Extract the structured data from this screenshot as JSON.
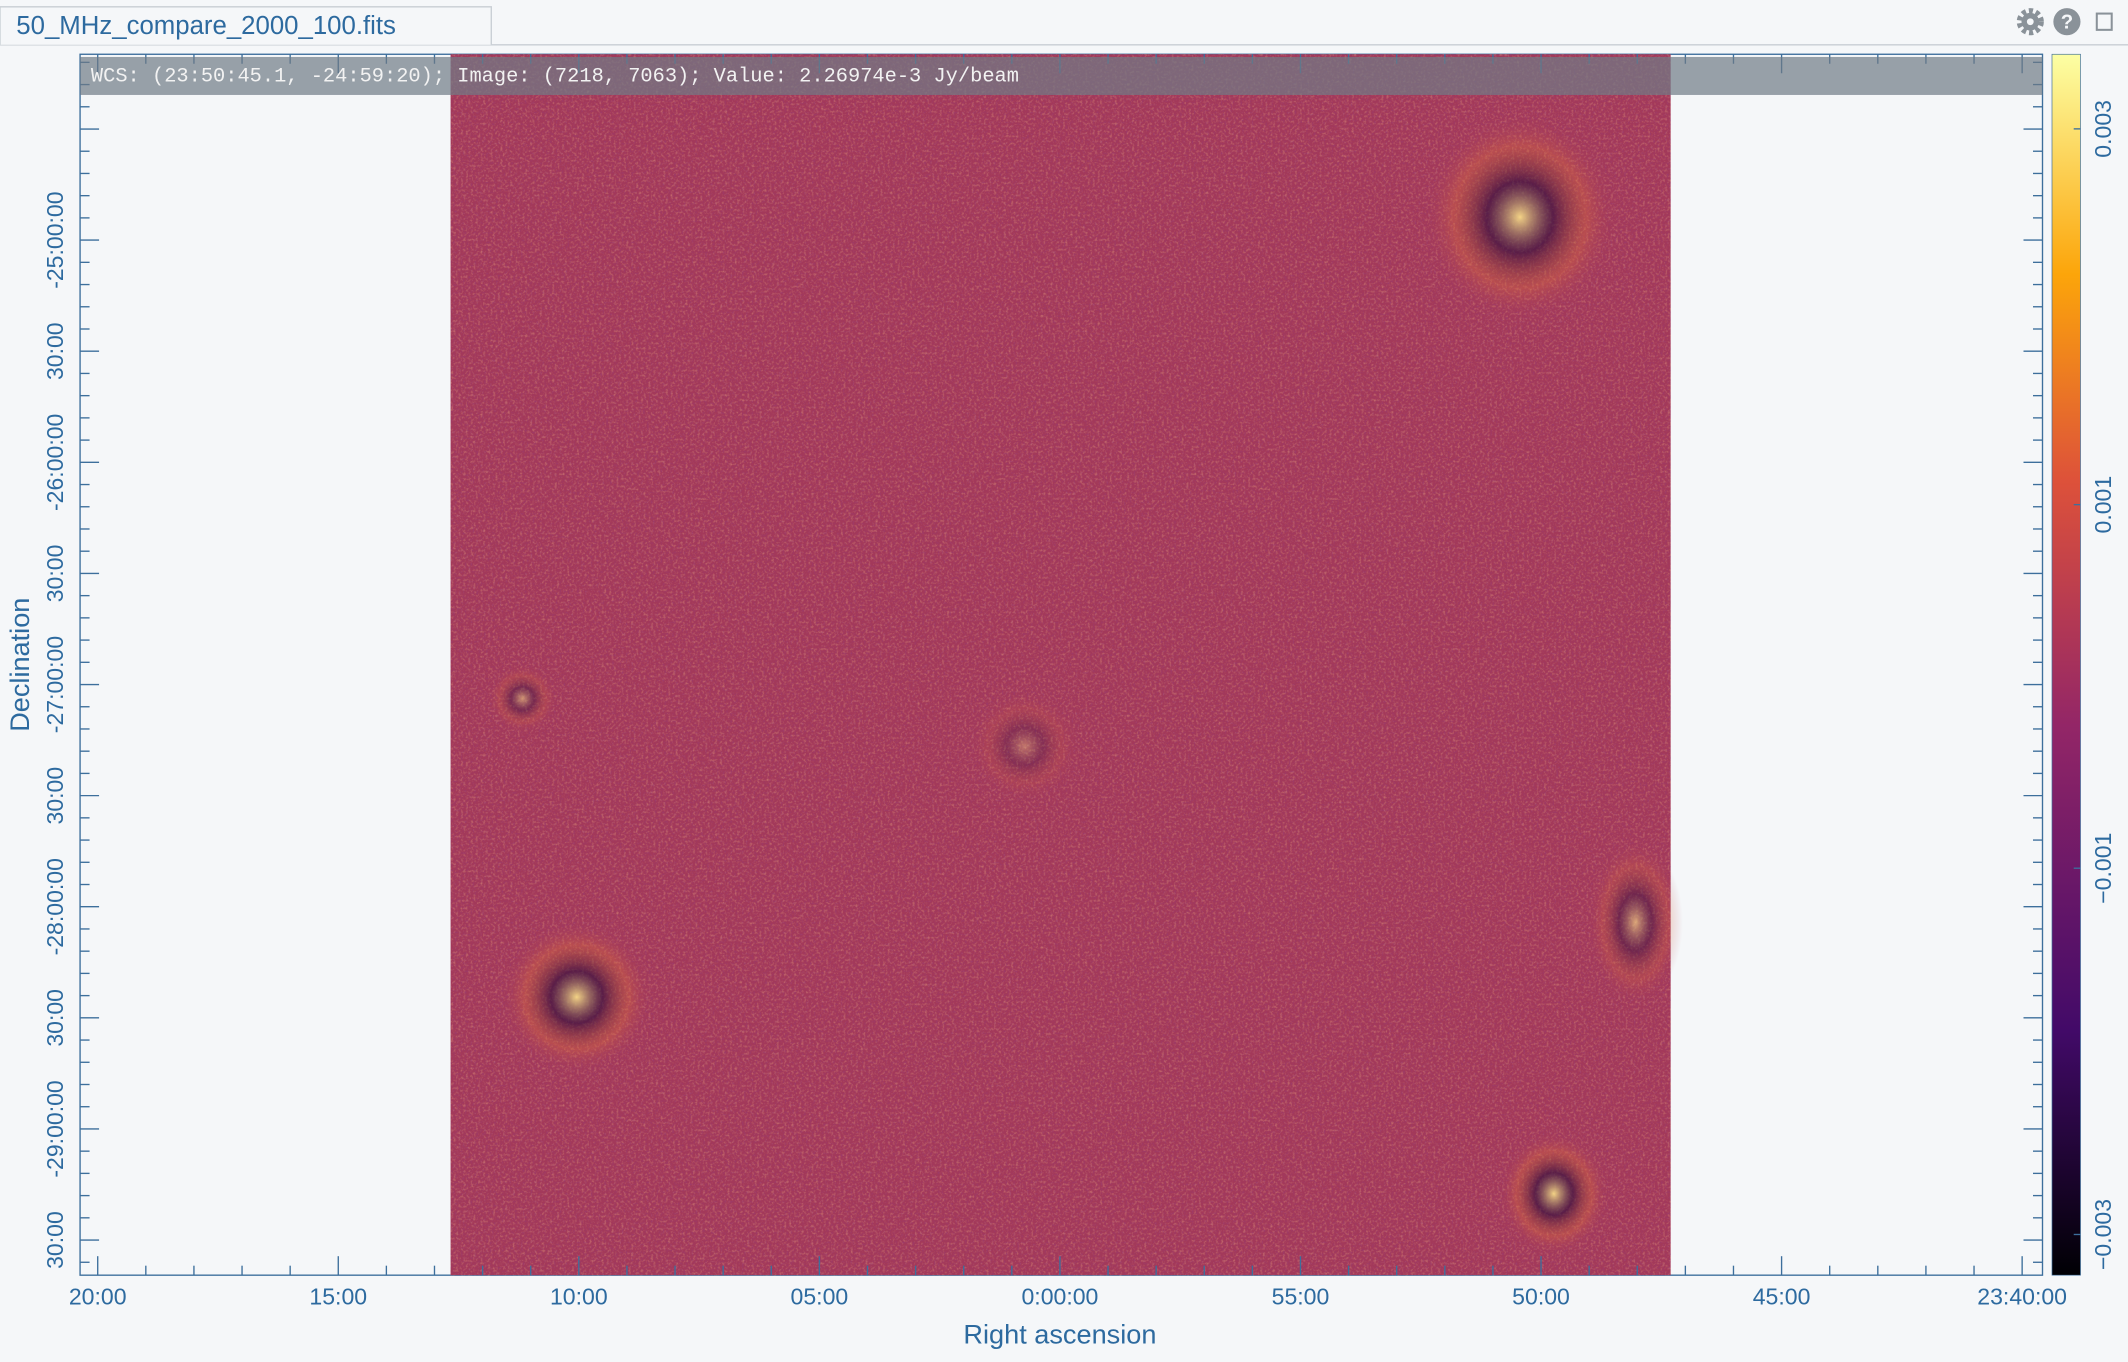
{
  "tab": {
    "title": "50_MHz_compare_2000_100.fits"
  },
  "cursor_info": "WCS: (23:50:45.1, -24:59:20); Image: (7218, 7063); Value:  2.26974e-3 Jy/beam",
  "image_axes": {
    "x_label": "Right ascension",
    "y_label": "Declination",
    "x_ticks": [
      "20:00",
      "15:00",
      "10:00",
      "05:00",
      "0:00:00",
      "55:00",
      "50:00",
      "45:00",
      "23:40:00"
    ],
    "y_ticks": [
      "-25:00:00",
      "30:00",
      "-26:00:00",
      "30:00",
      "-27:00:00",
      "30:00",
      "-28:00:00",
      "30:00",
      "-29:00:00",
      "30:00"
    ]
  },
  "colorbar": {
    "ticks": [
      "0.003",
      "0.001",
      "−0.001",
      "−0.003"
    ]
  }
}
